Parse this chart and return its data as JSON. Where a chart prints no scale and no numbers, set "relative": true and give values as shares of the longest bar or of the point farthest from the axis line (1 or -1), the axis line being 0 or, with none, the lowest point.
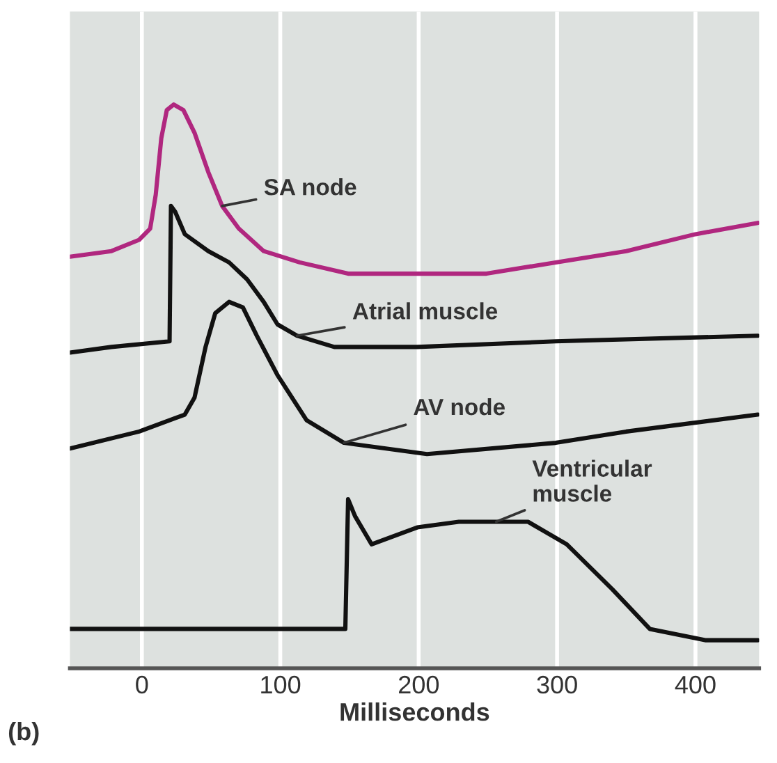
{
  "chart_data": {
    "type": "line",
    "relative": true,
    "xlabel": "Milliseconds",
    "annotations": [
      "(b)"
    ],
    "xlim": [
      -52,
      446
    ],
    "xticks": [
      0,
      100,
      200,
      300,
      400
    ],
    "grid": "x",
    "legend": false,
    "line_style": "solid",
    "tick_labels": "x",
    "series": [
      {
        "name": "SA node",
        "color": "#b0277f",
        "x": [
          -52,
          -22,
          -2,
          6,
          10,
          14,
          18,
          23,
          30,
          38,
          48,
          58,
          70,
          88,
          114,
          149,
          199,
          249,
          299,
          350,
          400,
          445
        ],
        "values": [
          0.73,
          0.74,
          0.76,
          0.78,
          0.84,
          0.94,
          0.99,
          1.0,
          0.99,
          0.95,
          0.88,
          0.82,
          0.78,
          0.74,
          0.72,
          0.7,
          0.7,
          0.7,
          0.72,
          0.74,
          0.77,
          0.79
        ]
      },
      {
        "name": "Atrial muscle",
        "color": "#111111",
        "x": [
          -52,
          -22,
          20,
          21,
          24,
          31,
          48,
          63,
          76,
          88,
          98,
          112,
          139,
          199,
          299,
          445
        ],
        "values": [
          0.56,
          0.57,
          0.58,
          0.82,
          0.81,
          0.77,
          0.74,
          0.72,
          0.69,
          0.65,
          0.61,
          0.59,
          0.57,
          0.57,
          0.58,
          0.59
        ]
      },
      {
        "name": "AV node",
        "color": "#111111",
        "x": [
          -52,
          -2,
          31,
          38,
          46,
          53,
          63,
          73,
          83,
          98,
          119,
          146,
          206,
          299,
          350,
          445
        ],
        "values": [
          0.39,
          0.42,
          0.45,
          0.48,
          0.57,
          0.63,
          0.65,
          0.64,
          0.59,
          0.52,
          0.44,
          0.4,
          0.38,
          0.4,
          0.42,
          0.45
        ]
      },
      {
        "name": "Ventricular muscle",
        "color": "#111111",
        "x": [
          -52,
          147,
          149,
          154,
          166,
          199,
          229,
          256,
          279,
          307,
          340,
          367,
          407,
          445
        ],
        "values": [
          0.07,
          0.07,
          0.3,
          0.27,
          0.22,
          0.25,
          0.26,
          0.26,
          0.26,
          0.22,
          0.14,
          0.07,
          0.05,
          0.05
        ]
      }
    ]
  }
}
